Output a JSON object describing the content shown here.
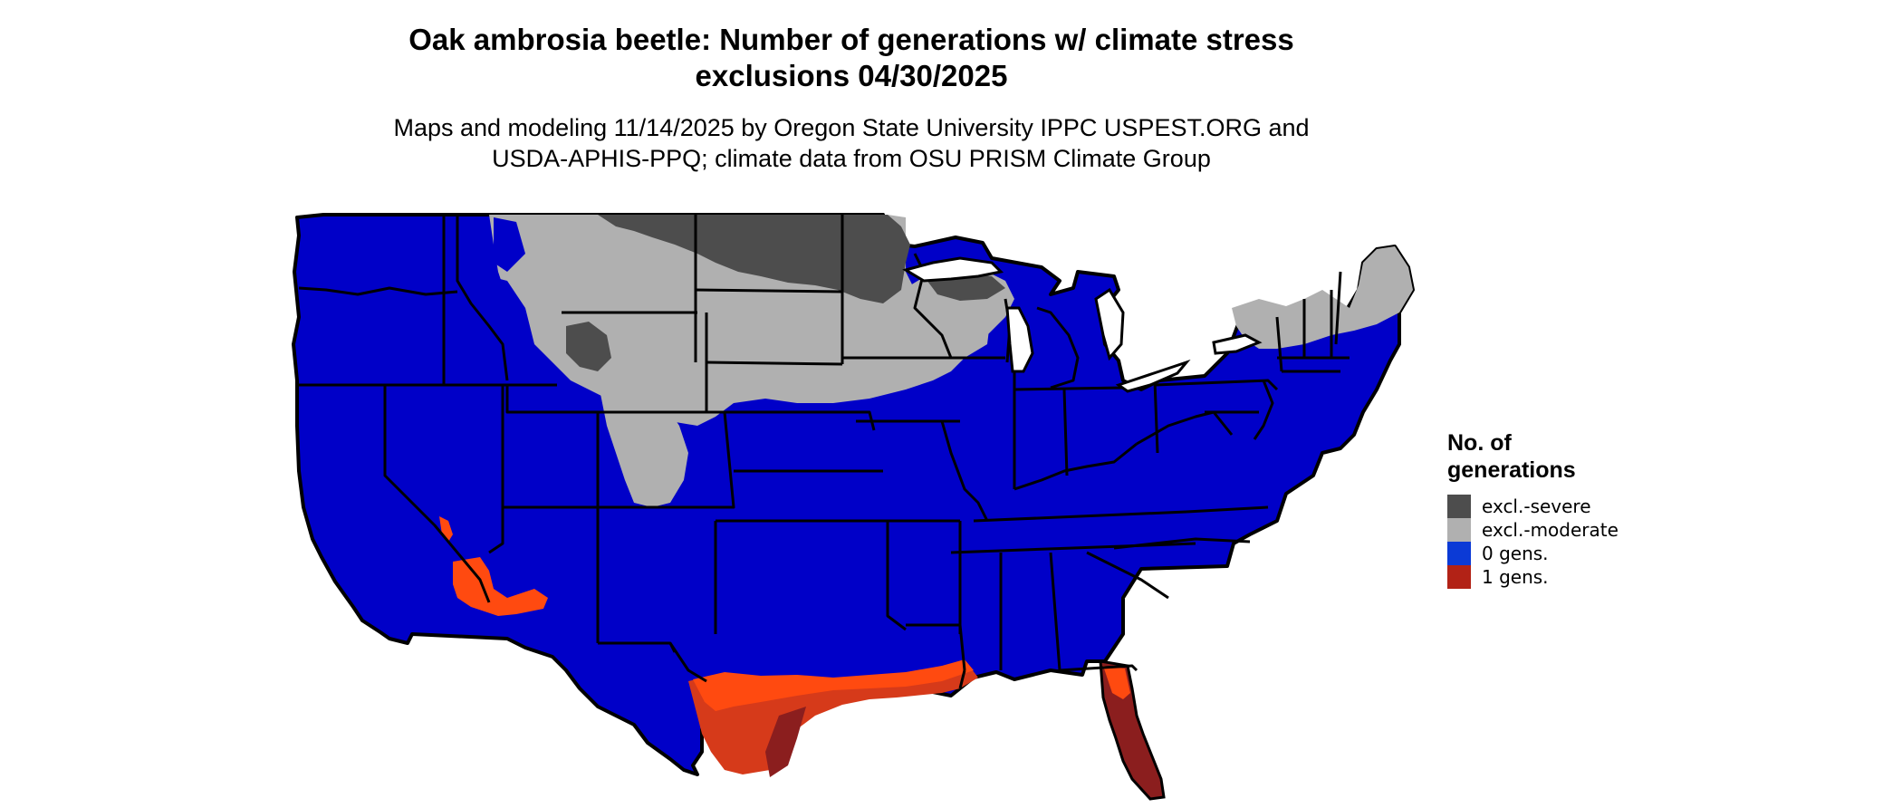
{
  "title": {
    "line1": "Oak ambrosia beetle: Number of generations w/ climate stress",
    "line2": "exclusions 04/30/2025"
  },
  "subtitle": {
    "line1": "Maps and modeling 11/14/2025 by Oregon State University IPPC USPEST.ORG and",
    "line2": "USDA-APHIS-PPQ; climate data from OSU PRISM Climate Group"
  },
  "legend": {
    "title_line1": "No. of",
    "title_line2": "generations",
    "items": [
      {
        "label": "excl.-severe",
        "color": "#4d4d4d"
      },
      {
        "label": "excl.-moderate",
        "color": "#b0b0b0"
      },
      {
        "label": "0 gens.",
        "color": "#0b3ad6"
      },
      {
        "label": "1 gens.",
        "color": "#b22216"
      }
    ]
  },
  "map_colors": {
    "zero_gens": "#0000c8",
    "one_gen_light": "#ff4a10",
    "one_gen_mid": "#d63a1a",
    "one_gen_dark": "#8b1e1e",
    "excl_moderate": "#b0b0b0",
    "excl_severe": "#4d4d4d",
    "border": "#000000"
  }
}
